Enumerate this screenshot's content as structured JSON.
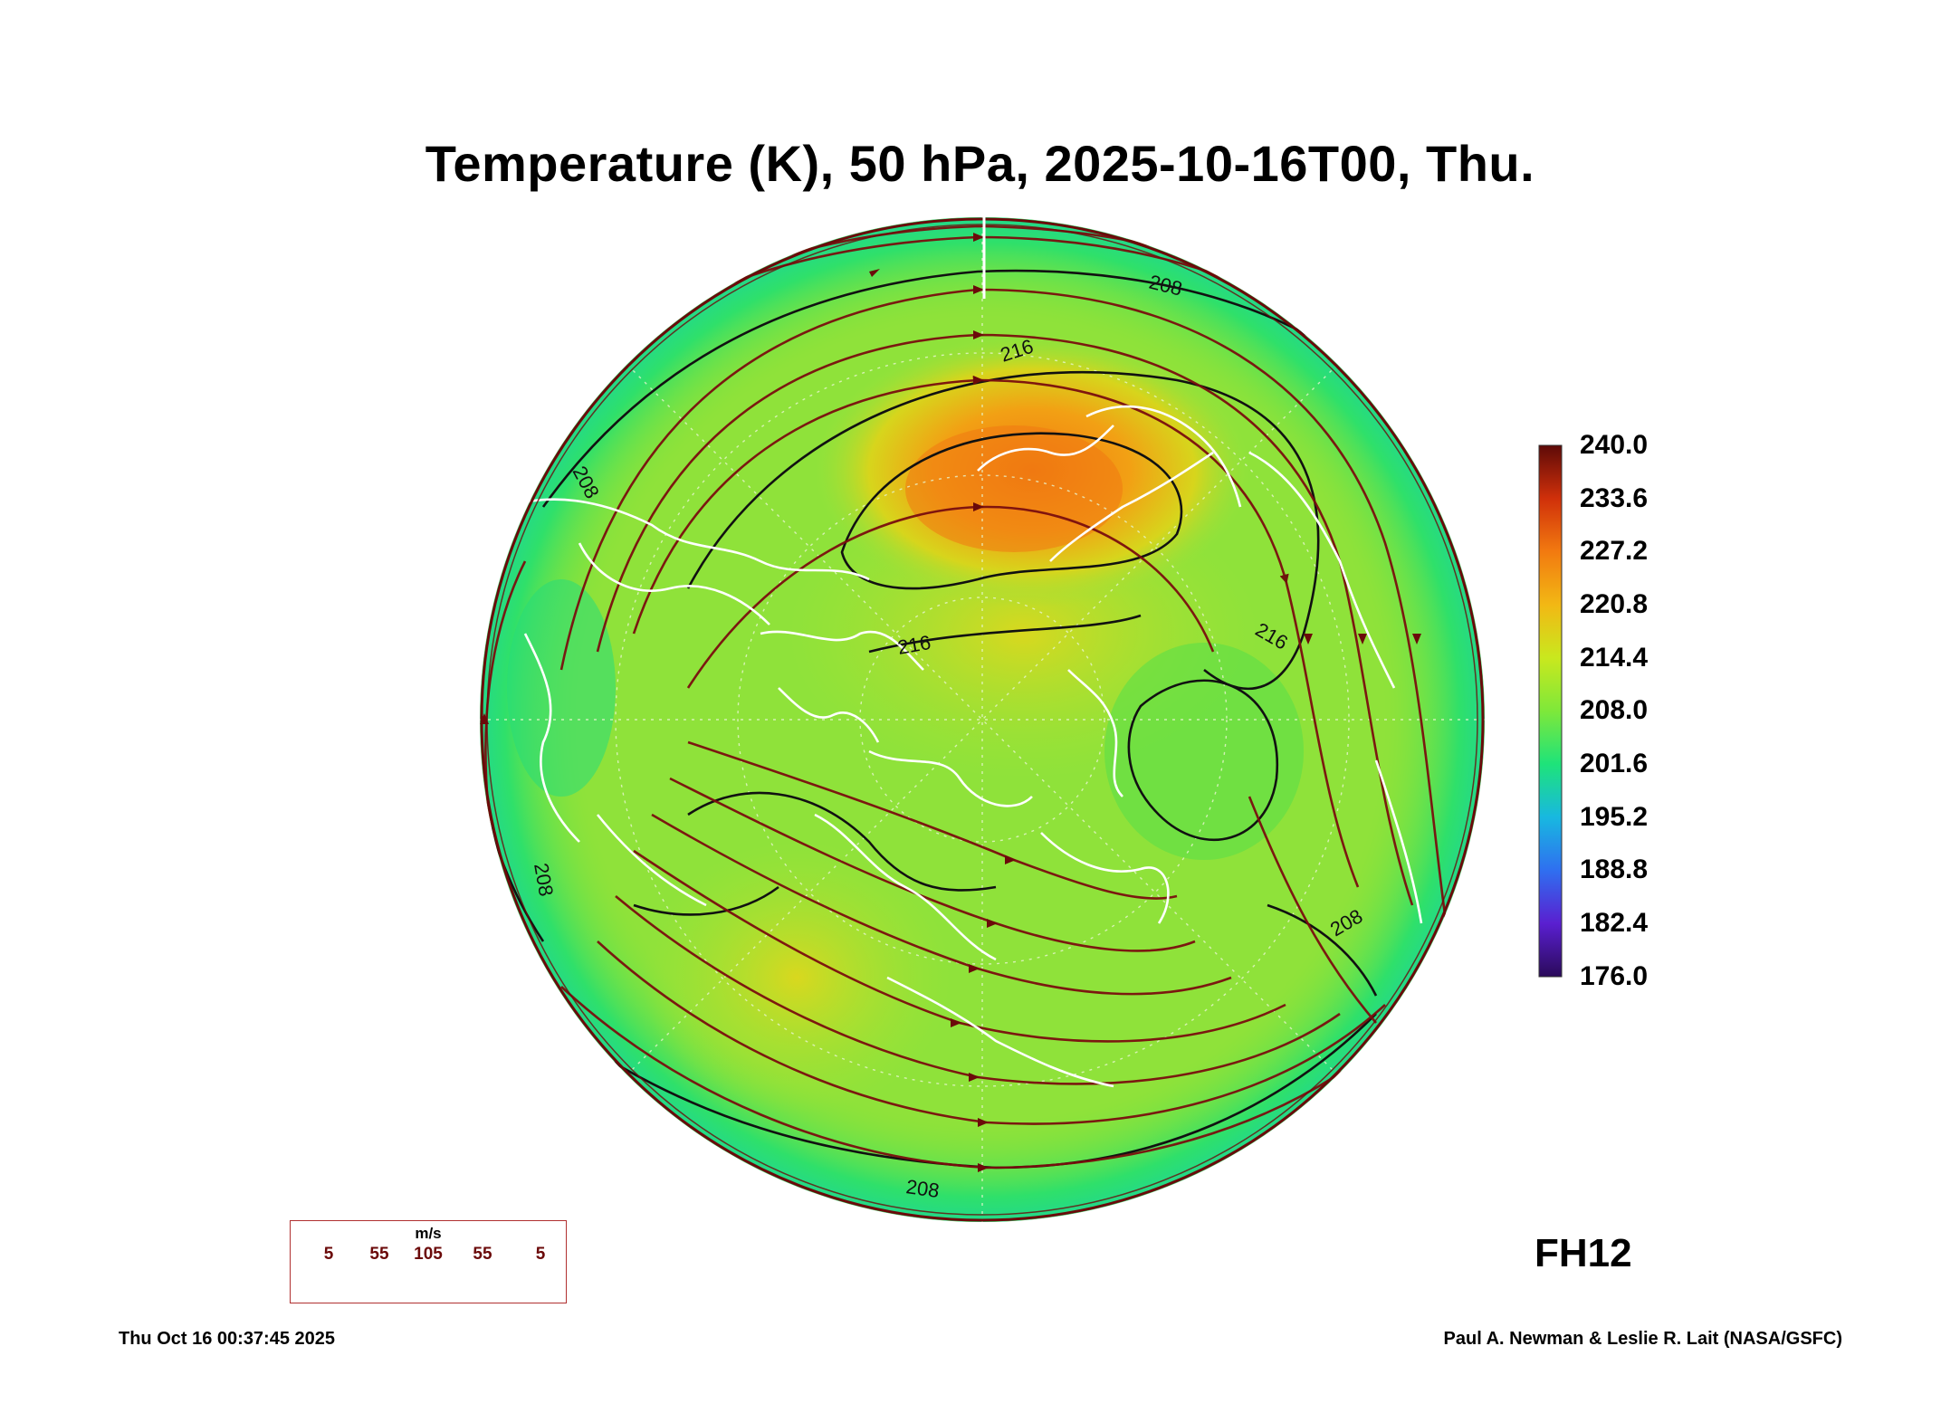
{
  "title": "Temperature (K), 50 hPa, 2025-10-16T00, Thu.",
  "colorbar": {
    "labels": [
      "240.0",
      "233.6",
      "227.2",
      "220.8",
      "214.4",
      "208.0",
      "201.6",
      "195.2",
      "188.8",
      "182.4",
      "176.0"
    ],
    "range": [
      176.0,
      240.0
    ],
    "colors": [
      "#3a0a6e",
      "#4b1fd6",
      "#2f7ff0",
      "#19c7d8",
      "#1ee37a",
      "#7ee83a",
      "#c9e81e",
      "#f2b814",
      "#f27a10",
      "#d8330a",
      "#6e0c08"
    ]
  },
  "contour_labels": [
    "208",
    "216",
    "216",
    "216",
    "208",
    "208",
    "208",
    "208"
  ],
  "wind_legend": {
    "unit": "m/s",
    "speeds": [
      "5",
      "55",
      "105",
      "55",
      "5"
    ]
  },
  "forecast_hour": "FH12",
  "timestamp": "Thu Oct 16 00:37:45 2025",
  "credit": "Paul A. Newman & Leslie R. Lait (NASA/GSFC)"
}
